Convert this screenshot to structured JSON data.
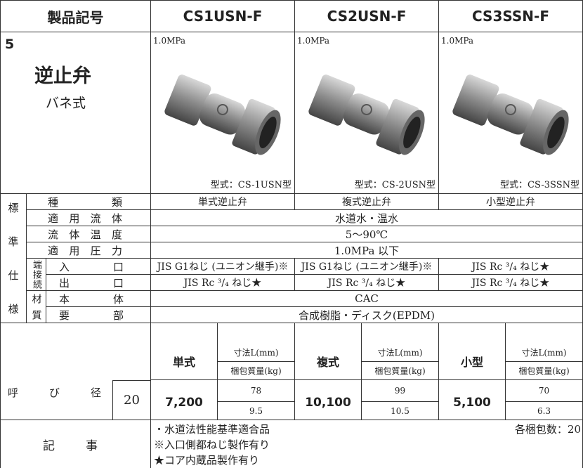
{
  "header": {
    "label": "製品記号",
    "products": [
      "CS1USN-F",
      "CS2USN-F",
      "CS3SSN-F"
    ]
  },
  "category": {
    "number": "5",
    "name": "逆止弁",
    "subtype": "バネ式"
  },
  "products": [
    {
      "pressure": "1.0MPa",
      "model": "型式：CS-1USN型"
    },
    {
      "pressure": "1.0MPa",
      "model": "型式：CS-2USN型"
    },
    {
      "pressure": "1.0MPa",
      "model": "型式：CS-3SSN型"
    }
  ],
  "specs": {
    "group": "標準仕様",
    "connection_group": "端接続",
    "material_group": "材質",
    "rows": [
      {
        "label": "種類",
        "values": [
          "単式逆止弁",
          "複式逆止弁",
          "小型逆止弁"
        ]
      },
      {
        "label": "適用流体",
        "values": [
          "水道水・温水"
        ]
      },
      {
        "label": "流体温度",
        "values": [
          "5〜90℃"
        ]
      },
      {
        "label": "適用圧力",
        "values": [
          "1.0MPa 以下"
        ]
      },
      {
        "label": "入口",
        "values": [
          "JIS G1ねじ (ユニオン継手)※",
          "JIS G1ねじ (ユニオン継手)※",
          "JIS Rc ³/₄ ねじ★"
        ]
      },
      {
        "label": "出口",
        "values": [
          "JIS Rc ³/₄ ねじ★",
          "JIS Rc ³/₄ ねじ★",
          "JIS Rc ³/₄ ねじ★"
        ]
      },
      {
        "label": "本体",
        "values": [
          "CAC"
        ]
      },
      {
        "label": "要部",
        "values": [
          "合成樹脂・ディスク(EPDM)"
        ]
      }
    ]
  },
  "size": {
    "label": "呼び径",
    "nominal": "20",
    "dimension_header": "寸法L(mm)",
    "weight_header": "梱包質量(kg)",
    "columns": [
      {
        "type": "単式",
        "quantity": "7,200",
        "dimension": "78",
        "weight": "9.5"
      },
      {
        "type": "複式",
        "quantity": "10,100",
        "dimension": "99",
        "weight": "10.5"
      },
      {
        "type": "小型",
        "quantity": "5,100",
        "dimension": "70",
        "weight": "6.3"
      }
    ]
  },
  "notes": {
    "label": "記事",
    "lines": [
      "・水道法性能基準適合品",
      "※入口側都ねじ製作有り",
      "★コア内蔵品製作有り"
    ],
    "packing": "各梱包数：20"
  }
}
